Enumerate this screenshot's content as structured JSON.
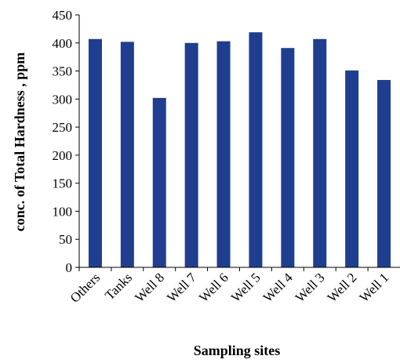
{
  "chart_data": {
    "type": "bar",
    "title": "",
    "xlabel": "Sampling sites",
    "ylabel": "conc. of Total Hardness , ppm",
    "ylim": [
      0,
      450
    ],
    "yticks": [
      0,
      50,
      100,
      150,
      200,
      250,
      300,
      350,
      400,
      450
    ],
    "grid": false,
    "legend": "none",
    "categories": [
      "Others",
      "Tanks",
      "Well 8",
      "Well 7",
      "Well 6",
      "Well 5",
      "Well 4",
      "Well 3",
      "Well 2",
      "Well 1"
    ],
    "series": [
      {
        "values": [
          407,
          402,
          302,
          400,
          403,
          419,
          391,
          407,
          351,
          334
        ],
        "color": "#1f3e8f"
      }
    ]
  }
}
